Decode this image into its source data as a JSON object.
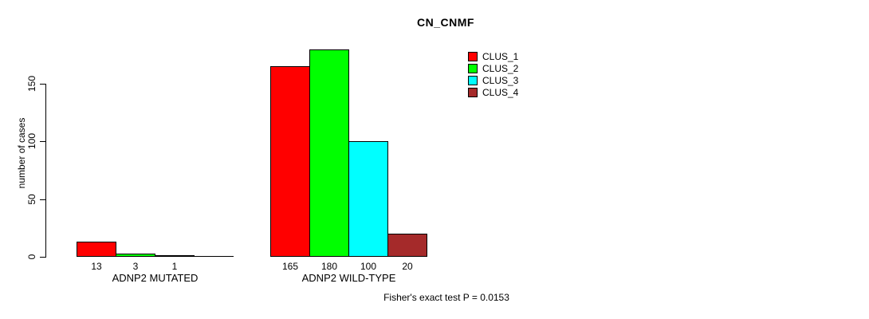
{
  "chart_data": {
    "type": "bar",
    "title": "CN_CNMF",
    "xlabel": "",
    "ylabel": "number of cases",
    "groups": [
      "ADNP2 MUTATED",
      "ADNP2 WILD-TYPE"
    ],
    "series": [
      {
        "name": "CLUS_1",
        "color": "#ff0000",
        "values": [
          13,
          165
        ]
      },
      {
        "name": "CLUS_2",
        "color": "#00ff00",
        "values": [
          3,
          180
        ]
      },
      {
        "name": "CLUS_3",
        "color": "#00ffff",
        "values": [
          1,
          100
        ]
      },
      {
        "name": "CLUS_4",
        "color": "#a52a2a",
        "values": [
          0,
          20
        ]
      }
    ],
    "bar_value_labels": [
      [
        "13",
        "3",
        "1",
        ""
      ],
      [
        "165",
        "180",
        "100",
        "20"
      ]
    ],
    "yticks": [
      0,
      50,
      100,
      150
    ],
    "ylim": [
      0,
      186
    ],
    "grid": false,
    "legend": {
      "position": "top-right"
    },
    "annotation": "Fisher's exact test P = 0.0153"
  }
}
